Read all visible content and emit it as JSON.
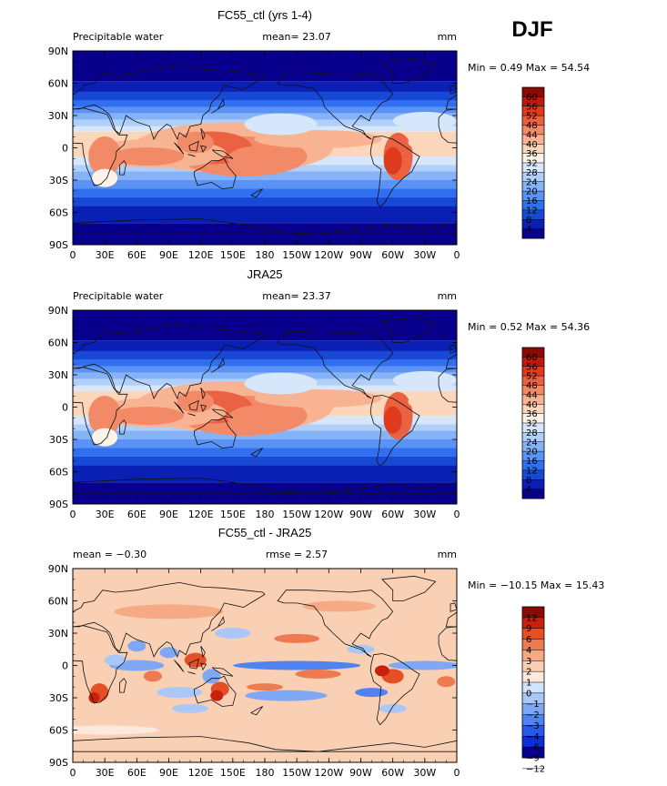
{
  "season": "DJF",
  "colors": {
    "full": [
      "#08008c",
      "#0a1fb4",
      "#1848d6",
      "#2f6ff0",
      "#5a93f5",
      "#86b2f7",
      "#b0cff9",
      "#d6e7fb",
      "#fdf3e8",
      "#fbd6bb",
      "#f8b392",
      "#f28a68",
      "#eb6242",
      "#dd3a1e",
      "#c0180d",
      "#8a0a05"
    ],
    "diff": [
      "#08008c",
      "#0e2ed0",
      "#2859ea",
      "#4f83f2",
      "#7ea8f5",
      "#a9c8f8",
      "#d2e4fb",
      "#fce9dc",
      "#fad0b4",
      "#f6a985",
      "#ee7a52",
      "#e44f26",
      "#c8200c",
      "#8a0a05"
    ]
  },
  "panels": [
    {
      "title": "FC55_ctl (yrs 1-4)",
      "left_label": "Precipitable water",
      "center_label": "mean=  23.07",
      "units": "mm",
      "minmax": "Min =   0.49 Max =  54.54",
      "colorbar": "full"
    },
    {
      "title": "JRA25",
      "left_label": "Precipitable water",
      "center_label": "mean=  23.37",
      "units": "mm",
      "minmax": "Min =   0.52 Max =  54.36",
      "colorbar": "full"
    },
    {
      "title": "FC55_ctl - JRA25",
      "left_label": "mean = −0.30",
      "center_label": "rmse =   2.57",
      "units": "mm",
      "minmax": "Min = −10.15 Max =  15.43",
      "colorbar": "diff"
    }
  ],
  "colorbars": {
    "full": {
      "labels": [
        "60",
        "56",
        "52",
        "48",
        "44",
        "40",
        "36",
        "32",
        "28",
        "24",
        "20",
        "16",
        "12",
        "8",
        "4"
      ]
    },
    "diff": {
      "labels": [
        "12",
        "9",
        "6",
        "4",
        "3",
        "2",
        "1",
        "0",
        "−1",
        "−2",
        "−3",
        "−4",
        "−6",
        "−9",
        "−12"
      ]
    }
  },
  "chart_data": {
    "type": "heatmap",
    "variable": "Precipitable water",
    "units": "mm",
    "x_tick_labels": [
      "0",
      "30E",
      "60E",
      "90E",
      "120E",
      "150E",
      "180",
      "150W",
      "120W",
      "90W",
      "60W",
      "30W",
      "0"
    ],
    "y_tick_labels": [
      "90N",
      "60N",
      "30N",
      "0",
      "30S",
      "60S",
      "90S"
    ],
    "x_range": [
      0,
      360
    ],
    "y_range": [
      -90,
      90
    ],
    "maps": [
      {
        "name": "FC55_ctl (yrs 1-4)",
        "mean": 23.07,
        "min": 0.49,
        "max": 54.54,
        "levels": [
          4,
          8,
          12,
          16,
          20,
          24,
          28,
          32,
          36,
          40,
          44,
          48,
          52,
          56,
          60
        ]
      },
      {
        "name": "JRA25",
        "mean": 23.37,
        "min": 0.52,
        "max": 54.36,
        "levels": [
          4,
          8,
          12,
          16,
          20,
          24,
          28,
          32,
          36,
          40,
          44,
          48,
          52,
          56,
          60
        ]
      },
      {
        "name": "FC55_ctl - JRA25",
        "mean": -0.3,
        "rmse": 2.57,
        "min": -10.15,
        "max": 15.43,
        "levels": [
          -12,
          -9,
          -6,
          -4,
          -3,
          -2,
          -1,
          0,
          1,
          2,
          3,
          4,
          6,
          9,
          12
        ]
      }
    ]
  }
}
